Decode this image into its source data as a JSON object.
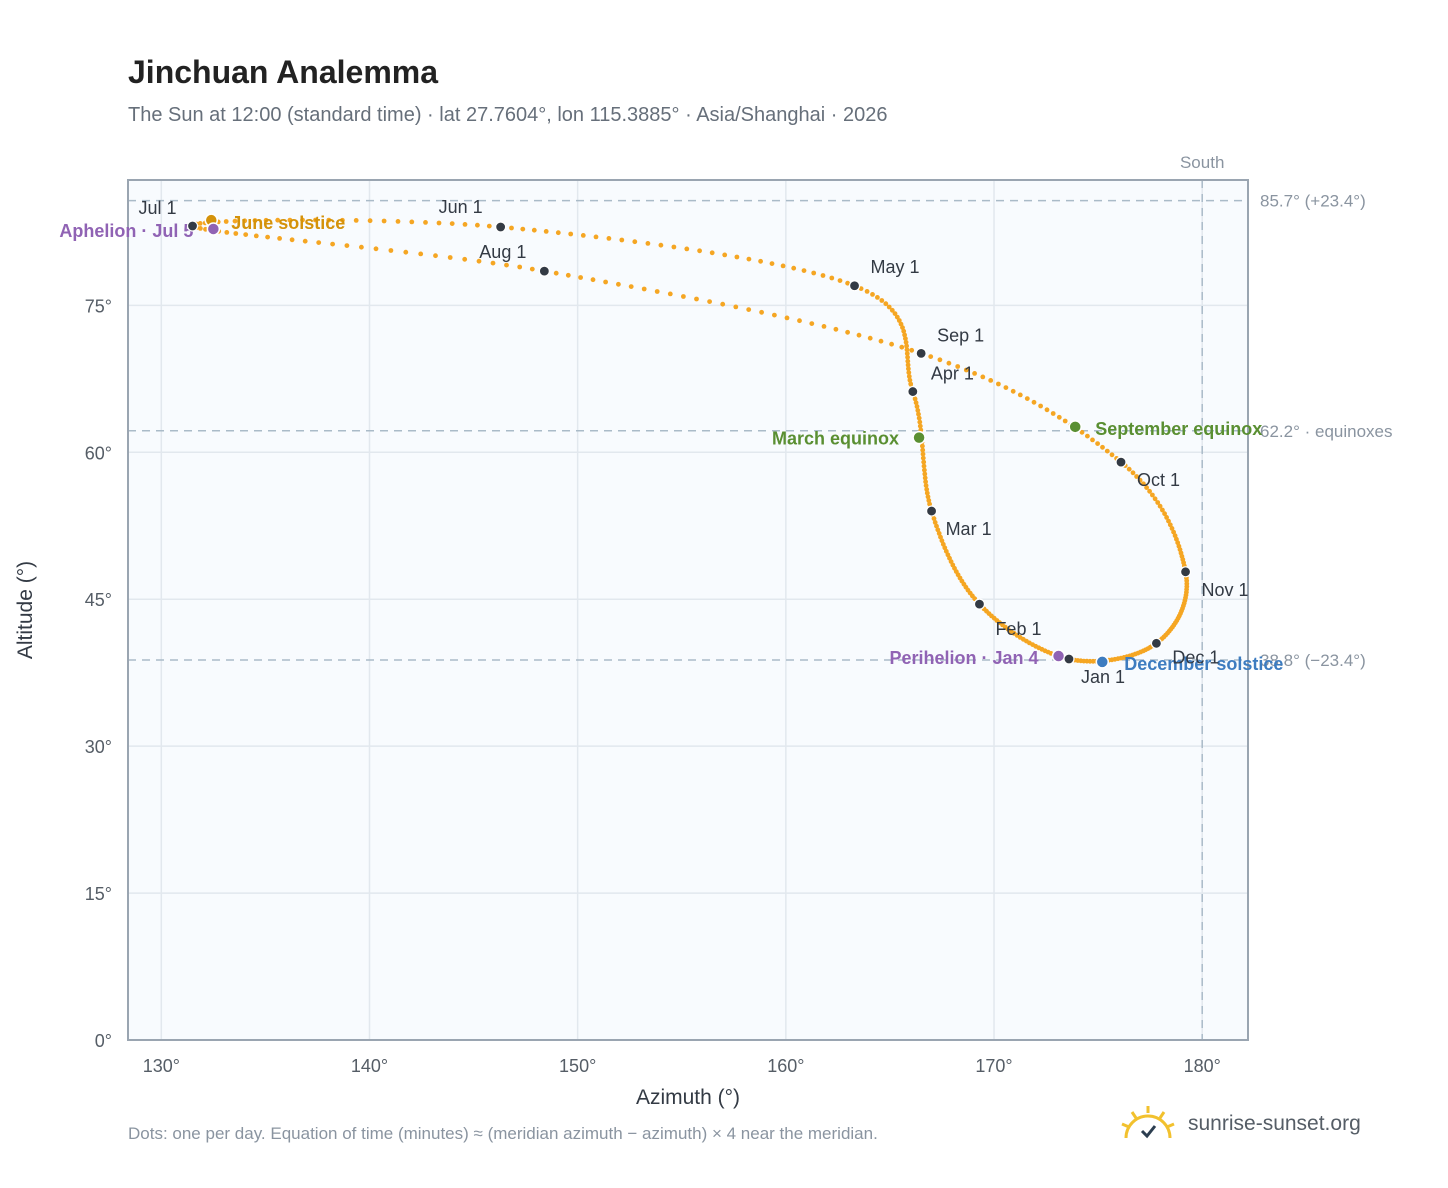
{
  "title": "Jinchuan Analemma",
  "subtitle": "The Sun at 12:00 (standard time) · lat 27.7604°, lon 115.3885° · Asia/Shanghai · 2026",
  "footnote": "Dots: one per day. Equation of time (minutes) ≈ (meridian azimuth − azimuth) × 4 near the meridian.",
  "brand": {
    "name": "sunrise-sunset.org",
    "icon": "sun-logo-icon"
  },
  "colors": {
    "curve": "#f5a623",
    "month_dot": "#333a44",
    "equinox": "#5a8f32",
    "solstice_june": "#d4920a",
    "solstice_december": "#3d7cc0",
    "apsis": "#9063b4",
    "reference_line": "#aabbc8",
    "plot_bg": "#f8fbfe",
    "grid": "#e2e8ee"
  },
  "chart_data": {
    "type": "scatter",
    "xlabel": "Azimuth (°)",
    "ylabel": "Altitude (°)",
    "xlim": [
      128.4,
      182.2
    ],
    "ylim": [
      0,
      87.8
    ],
    "x_ticks": [
      130,
      140,
      150,
      160,
      170,
      180
    ],
    "x_tick_labels": [
      "130°",
      "140°",
      "150°",
      "160°",
      "170°",
      "180°"
    ],
    "y_ticks": [
      0,
      15,
      30,
      45,
      60,
      75
    ],
    "y_tick_labels": [
      "0°",
      "15°",
      "30°",
      "45°",
      "60°",
      "75°"
    ],
    "grid": true,
    "meridian": {
      "azimuth": 180,
      "label": "South"
    },
    "reference_lines": [
      {
        "altitude": 85.7,
        "label": "85.7° (+23.4°)"
      },
      {
        "altitude": 62.2,
        "label": "62.2° · equinoxes"
      },
      {
        "altitude": 38.8,
        "label": "38.8° (−23.4°)"
      }
    ],
    "months": [
      {
        "label": "Jan 1",
        "az": 173.6,
        "alt": 38.9
      },
      {
        "label": "Feb 1",
        "az": 169.3,
        "alt": 44.5
      },
      {
        "label": "Mar 1",
        "az": 167.0,
        "alt": 54.0
      },
      {
        "label": "Apr 1",
        "az": 166.1,
        "alt": 66.2
      },
      {
        "label": "May 1",
        "az": 163.3,
        "alt": 77.0
      },
      {
        "label": "Jun 1",
        "az": 146.3,
        "alt": 83.0
      },
      {
        "label": "Jul 1",
        "az": 131.5,
        "alt": 83.1
      },
      {
        "label": "Aug 1",
        "az": 148.4,
        "alt": 78.5
      },
      {
        "label": "Sep 1",
        "az": 166.5,
        "alt": 70.1
      },
      {
        "label": "Oct 1",
        "az": 176.1,
        "alt": 59.0
      },
      {
        "label": "Nov 1",
        "az": 179.2,
        "alt": 47.8
      },
      {
        "label": "Dec 1",
        "az": 177.8,
        "alt": 40.5
      }
    ],
    "events": [
      {
        "label": "March equinox",
        "az": 166.4,
        "alt": 61.5,
        "kind": "equinox"
      },
      {
        "label": "September equinox",
        "az": 173.9,
        "alt": 62.6,
        "kind": "equinox"
      },
      {
        "label": "June solstice",
        "az": 132.4,
        "alt": 83.7,
        "kind": "solstice_june"
      },
      {
        "label": "December solstice",
        "az": 175.2,
        "alt": 38.6,
        "kind": "solstice_december"
      },
      {
        "label": "Perihelion · Jan 4",
        "az": 173.1,
        "alt": 39.2,
        "kind": "apsis"
      },
      {
        "label": "Aphelion · Jul 5",
        "az": 132.5,
        "alt": 82.8,
        "kind": "apsis"
      }
    ]
  }
}
